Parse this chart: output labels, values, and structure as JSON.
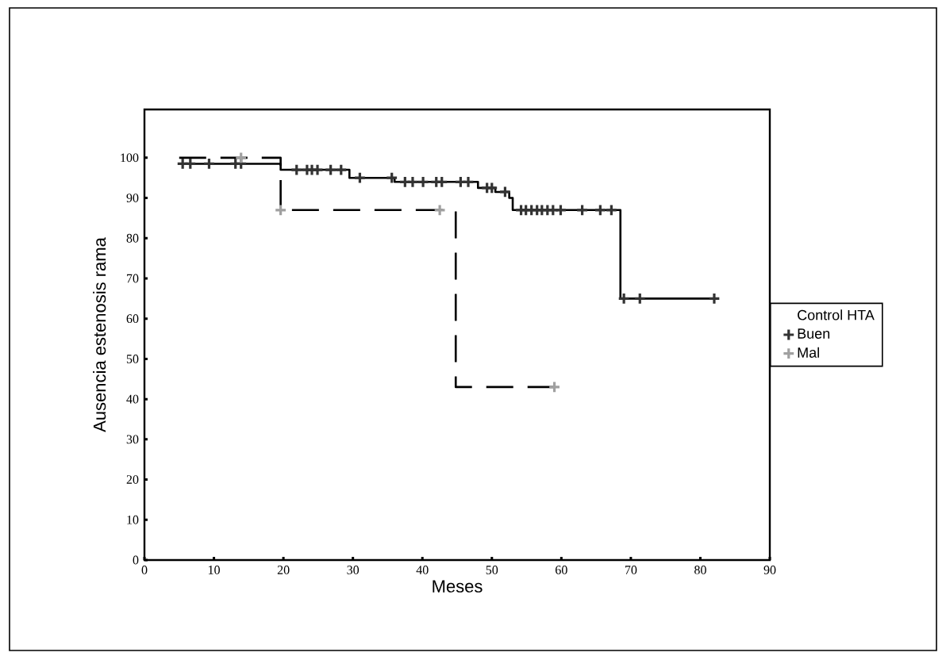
{
  "chart_data": {
    "type": "step",
    "xlabel": "Meses",
    "ylabel": "Ausencia estenosis rama",
    "legend_title": "Control HTA",
    "xlim": [
      0,
      90
    ],
    "ylim": [
      0,
      112
    ],
    "xticks": [
      0,
      10,
      20,
      30,
      40,
      50,
      60,
      70,
      80,
      90
    ],
    "yticks": [
      0,
      10,
      20,
      30,
      40,
      50,
      60,
      70,
      80,
      90,
      100
    ],
    "legend": "right",
    "series": [
      {
        "color": "#000000",
        "line_style": "solid",
        "marker": "none",
        "x": [
          5,
          19.6,
          29.5,
          36,
          48,
          50.5,
          52.5,
          53,
          68.5,
          82
        ],
        "values": [
          98.5,
          97,
          95,
          94,
          92.5,
          91.5,
          90,
          87,
          65,
          65
        ]
      },
      {
        "type": "step",
        "color": "#000000",
        "line_style": "dashed",
        "marker": "none",
        "x": [
          5,
          19.6,
          44.8,
          59
        ],
        "values": [
          100,
          87,
          43,
          43
        ]
      },
      {
        "type": "scatter",
        "name": "Buen",
        "color": "#333333",
        "marker": "cross",
        "x": [
          5.5,
          6.6,
          9.3,
          13.1,
          13.9,
          21.9,
          23.4,
          24.1,
          24.9,
          26.8,
          28.3,
          31,
          35.6,
          37.5,
          38.6,
          40.1,
          42,
          42.8,
          45.5,
          46.6,
          49.3,
          50,
          51.9,
          54.2,
          54.9,
          55.7,
          56.5,
          57.2,
          58,
          58.8,
          59.9,
          63,
          65.6,
          67.2,
          69,
          71.3,
          82
        ],
        "values": [
          98.5,
          98.5,
          98.5,
          98.5,
          98.5,
          97,
          97,
          97,
          97,
          97,
          97,
          95,
          95,
          94,
          94,
          94,
          94,
          94,
          94,
          94,
          92.5,
          92.5,
          91.5,
          87,
          87,
          87,
          87,
          87,
          87,
          87,
          87,
          87,
          87,
          87,
          65,
          65,
          65
        ]
      },
      {
        "type": "scatter",
        "name": "Mal",
        "color": "#a0a0a0",
        "marker": "cross",
        "x": [
          13.9,
          19.6,
          42.5,
          59
        ],
        "values": [
          100,
          87,
          87,
          43
        ]
      }
    ]
  }
}
